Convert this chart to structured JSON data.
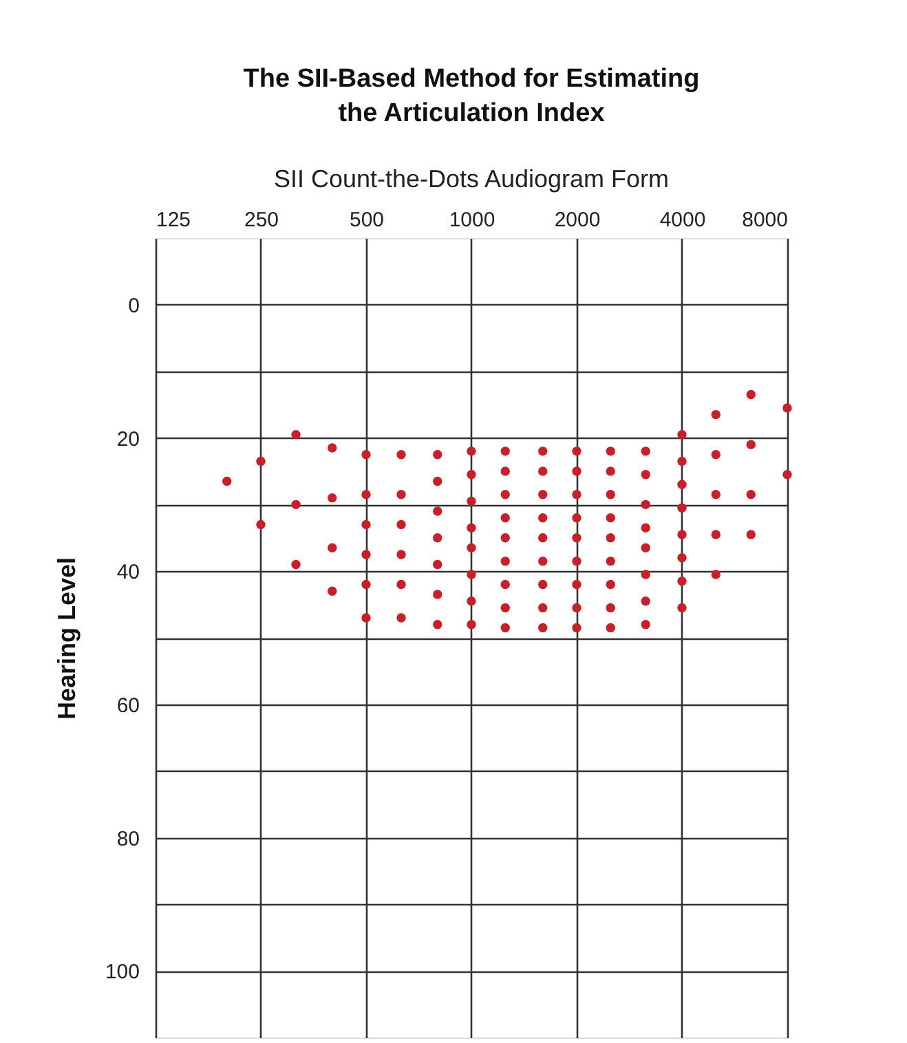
{
  "chart_data": {
    "type": "scatter",
    "title": "The SII-Based Method for Estimating\nthe Articulation Index",
    "subtitle": "SII Count-the-Dots Audiogram Form",
    "ylabel": "Hearing Level",
    "log": "x",
    "grid": true,
    "marker": "circle",
    "xlim": [
      125,
      8000
    ],
    "xticks": [
      125,
      250,
      500,
      1000,
      2000,
      4000,
      8000
    ],
    "ylim": [
      110,
      -10
    ],
    "yticks": [
      0,
      {
        "value": 10,
        "label": null
      },
      20,
      {
        "value": 30,
        "label": null
      },
      40,
      {
        "value": 50,
        "label": null
      },
      60,
      {
        "value": 70,
        "label": null
      },
      80,
      {
        "value": 90,
        "label": null
      },
      100
    ],
    "series": [
      {
        "color": "#c8202a",
        "x": [
          200,
          250,
          250,
          315,
          315,
          315,
          400,
          400,
          400,
          400,
          500,
          500,
          500,
          500,
          500,
          500,
          630,
          630,
          630,
          630,
          630,
          630,
          800,
          800,
          800,
          800,
          800,
          800,
          800,
          1000,
          1000,
          1000,
          1000,
          1000,
          1000,
          1000,
          1000,
          1250,
          1250,
          1250,
          1250,
          1250,
          1250,
          1250,
          1250,
          1250,
          1600,
          1600,
          1600,
          1600,
          1600,
          1600,
          1600,
          1600,
          1600,
          2000,
          2000,
          2000,
          2000,
          2000,
          2000,
          2000,
          2000,
          2000,
          2500,
          2500,
          2500,
          2500,
          2500,
          2500,
          2500,
          2500,
          2500,
          3150,
          3150,
          3150,
          3150,
          3150,
          3150,
          3150,
          3150,
          4000,
          4000,
          4000,
          4000,
          4000,
          4000,
          4000,
          4000,
          5000,
          5000,
          5000,
          5000,
          5000,
          6300,
          6300,
          6300,
          6300,
          8000,
          8000
        ],
        "values": [
          26.5,
          23.5,
          33,
          19.5,
          30,
          39,
          21.5,
          29,
          36.5,
          43,
          22.5,
          28.5,
          33,
          37.5,
          42,
          47,
          22.5,
          28.5,
          33,
          37.5,
          42,
          47,
          22.5,
          26.5,
          31,
          35,
          39,
          43.5,
          48,
          22,
          25.5,
          29.5,
          33.5,
          36.5,
          40.5,
          44.5,
          48,
          22,
          25,
          28.5,
          32,
          35,
          38.5,
          42,
          45.5,
          48.5,
          22,
          25,
          28.5,
          32,
          35,
          38.5,
          42,
          45.5,
          48.5,
          22,
          25,
          28.5,
          32,
          35,
          38.5,
          42,
          45.5,
          48.5,
          22,
          25,
          28.5,
          32,
          35,
          38.5,
          42,
          45.5,
          48.5,
          22,
          25.5,
          30,
          33.5,
          36.5,
          40.5,
          44.5,
          48,
          19.5,
          23.5,
          27,
          30.5,
          34.5,
          38,
          41.5,
          45.5,
          16.5,
          22.5,
          28.5,
          34.5,
          40.5,
          13.5,
          21,
          28.5,
          34.5,
          15.5,
          25.5
        ]
      }
    ]
  }
}
